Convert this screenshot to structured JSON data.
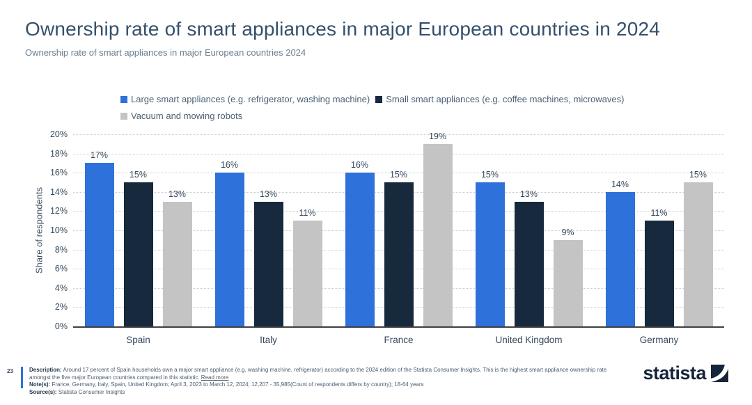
{
  "page": {
    "title": "Ownership rate of smart appliances in major European countries in 2024",
    "subtitle": "Ownership rate of smart appliances in major European countries 2024",
    "page_number": "23"
  },
  "legend": {
    "items": [
      {
        "label": "Large smart appliances (e.g. refrigerator, washing machine)",
        "color": "#2e71da"
      },
      {
        "label": "Small smart appliances (e.g. coffee machines, microwaves)",
        "color": "#16293d"
      },
      {
        "label": "Vacuum and mowing robots",
        "color": "#c4c4c4"
      }
    ]
  },
  "chart_data": {
    "type": "bar",
    "categories": [
      "Spain",
      "Italy",
      "France",
      "United Kingdom",
      "Germany"
    ],
    "series": [
      {
        "name": "Large smart appliances (e.g. refrigerator, washing machine)",
        "color": "#2e71da",
        "values": [
          17,
          16,
          16,
          15,
          14
        ]
      },
      {
        "name": "Small smart appliances (e.g. coffee machines, microwaves)",
        "color": "#16293d",
        "values": [
          15,
          13,
          15,
          13,
          11
        ]
      },
      {
        "name": "Vacuum and mowing robots",
        "color": "#c4c4c4",
        "values": [
          13,
          11,
          19,
          9,
          15
        ]
      }
    ],
    "title": "Ownership rate of smart appliances in major European countries in 2024",
    "xlabel": "",
    "ylabel": "Share of respondents",
    "ylim": [
      0,
      20
    ],
    "ytick_step": 2,
    "value_suffix": "%",
    "grid": "horizontal-dotted",
    "legend_position": "top"
  },
  "footer": {
    "description_label": "Description:",
    "description_text": "Around 17 percent of Spain households own a major smart appliance (e.g. washing machine, refrigerator) according to the 2024 edition of the Statista Consumer Insights. This is the highest smart appliance ownership rate amongst the five major European countries compared in this statistic.",
    "read_more": "Read more",
    "notes_label": "Note(s):",
    "notes_text": "France, Germany, Italy, Spain, United Kingdom; April 3, 2023 to March 12, 2024; 12,207 - 35,985(Count of respondents differs by country); 18-64 years",
    "source_label": "Source(s):",
    "source_text": "Statista Consumer Insights",
    "brand": "statista"
  },
  "colors": {
    "accent_blue": "#2e71da",
    "brand_navy": "#15253c",
    "axis_text": "#35495d",
    "title_navy": "#35506b"
  }
}
